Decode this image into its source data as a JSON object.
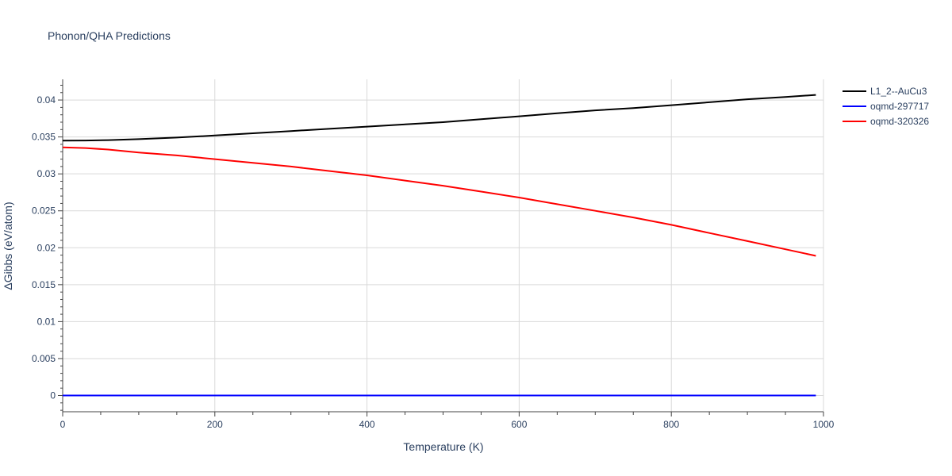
{
  "chart_data": {
    "type": "line",
    "title": "Phonon/QHA Predictions",
    "xlabel": "Temperature (K)",
    "ylabel": "ΔGibbs (eV/atom)",
    "xlim": [
      0,
      1000
    ],
    "ylim": [
      -0.0022,
      0.0428
    ],
    "xticks": [
      0,
      200,
      400,
      600,
      800,
      1000
    ],
    "xtick_labels": [
      "0",
      "200",
      "400",
      "600",
      "800",
      "1000"
    ],
    "yticks": [
      0,
      0.005,
      0.01,
      0.015,
      0.02,
      0.025,
      0.03,
      0.035,
      0.04
    ],
    "ytick_labels": [
      "0",
      "0.005",
      "0.01",
      "0.015",
      "0.02",
      "0.025",
      "0.03",
      "0.035",
      "0.04"
    ],
    "grid": true,
    "legend_position": "top-right",
    "series": [
      {
        "name": "L1_2--AuCu3",
        "color": "#000000",
        "x": [
          0,
          30,
          60,
          100,
          150,
          200,
          250,
          300,
          350,
          400,
          450,
          500,
          550,
          600,
          650,
          700,
          750,
          800,
          850,
          900,
          950,
          990
        ],
        "y": [
          0.0345,
          0.03452,
          0.03457,
          0.0347,
          0.03492,
          0.0352,
          0.0355,
          0.0358,
          0.0361,
          0.0364,
          0.0367,
          0.037,
          0.0374,
          0.0378,
          0.0382,
          0.0386,
          0.0389,
          0.0393,
          0.0397,
          0.0401,
          0.0404,
          0.0407
        ]
      },
      {
        "name": "oqmd-297717",
        "color": "#0000ff",
        "x": [
          0,
          990
        ],
        "y": [
          0,
          0
        ]
      },
      {
        "name": "oqmd-320326",
        "color": "#ff0000",
        "x": [
          0,
          30,
          60,
          100,
          150,
          200,
          250,
          300,
          350,
          400,
          450,
          500,
          550,
          600,
          650,
          700,
          750,
          800,
          850,
          900,
          950,
          990
        ],
        "y": [
          0.0336,
          0.0335,
          0.0333,
          0.0329,
          0.0325,
          0.032,
          0.0315,
          0.031,
          0.0304,
          0.0298,
          0.0291,
          0.0284,
          0.0276,
          0.0268,
          0.0259,
          0.025,
          0.0241,
          0.0231,
          0.022,
          0.0209,
          0.0198,
          0.0189
        ]
      }
    ]
  }
}
